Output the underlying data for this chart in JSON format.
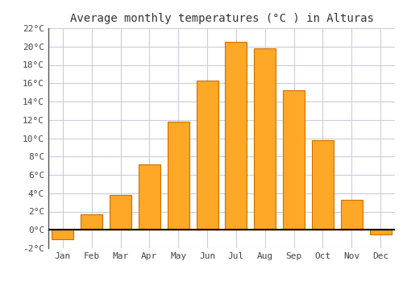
{
  "title": "Average monthly temperatures (°C ) in Alturas",
  "months": [
    "Jan",
    "Feb",
    "Mar",
    "Apr",
    "May",
    "Jun",
    "Jul",
    "Aug",
    "Sep",
    "Oct",
    "Nov",
    "Dec"
  ],
  "values": [
    -1.0,
    1.7,
    3.8,
    7.1,
    11.8,
    16.3,
    20.5,
    19.8,
    15.2,
    9.8,
    3.3,
    -0.5
  ],
  "bar_color": "#FFA726",
  "bar_edge_color": "#CC7000",
  "ylim": [
    -2,
    22
  ],
  "yticks": [
    -2,
    0,
    2,
    4,
    6,
    8,
    10,
    12,
    14,
    16,
    18,
    20,
    22
  ],
  "ytick_labels": [
    "-2°C",
    "0°C",
    "2°C",
    "4°C",
    "6°C",
    "8°C",
    "10°C",
    "12°C",
    "14°C",
    "16°C",
    "18°C",
    "20°C",
    "22°C"
  ],
  "background_color": "#ffffff",
  "grid_color": "#ccccdd",
  "title_fontsize": 10,
  "tick_fontsize": 8,
  "zero_line_color": "#000000",
  "bar_width": 0.75,
  "left_spine_color": "#555555"
}
